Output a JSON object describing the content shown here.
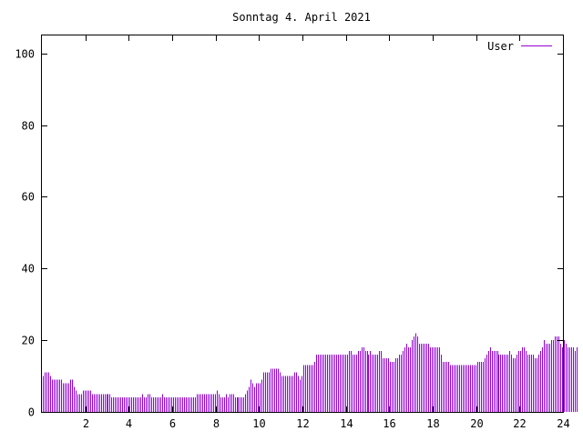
{
  "chart_data": {
    "type": "bar",
    "title": "Sonntag 4. April 2021",
    "xlabel": "",
    "ylabel": "",
    "xlim": [
      0,
      24
    ],
    "ylim": [
      0,
      105
    ],
    "x_ticks": [
      "2",
      "4",
      "6",
      "8",
      "10",
      "12",
      "14",
      "16",
      "18",
      "20",
      "22",
      "24"
    ],
    "y_ticks": [
      "0",
      "20",
      "40",
      "60",
      "80",
      "100"
    ],
    "grid": false,
    "legend_position": "top-right",
    "series": [
      {
        "name": "User",
        "color": "#9400d3",
        "interval_minutes": 5,
        "values": [
          10,
          11,
          11,
          11,
          10,
          9,
          9,
          9,
          9,
          9,
          9,
          8,
          8,
          8,
          8,
          9,
          9,
          7,
          6,
          5,
          5,
          5,
          6,
          6,
          6,
          6,
          6,
          5,
          5,
          5,
          5,
          5,
          5,
          5,
          5,
          5,
          5,
          5,
          4,
          4,
          4,
          4,
          4,
          4,
          4,
          4,
          4,
          4,
          4,
          4,
          4,
          4,
          4,
          4,
          4,
          5,
          4,
          4,
          5,
          5,
          4,
          4,
          4,
          4,
          4,
          4,
          5,
          4,
          4,
          4,
          4,
          4,
          4,
          4,
          4,
          4,
          4,
          4,
          4,
          4,
          4,
          4,
          4,
          4,
          4,
          5,
          5,
          5,
          5,
          5,
          5,
          5,
          5,
          5,
          5,
          5,
          6,
          5,
          4,
          4,
          4,
          5,
          4,
          5,
          5,
          5,
          4,
          4,
          4,
          4,
          4,
          4,
          5,
          6,
          7,
          9,
          8,
          7,
          8,
          8,
          8,
          9,
          11,
          11,
          11,
          11,
          12,
          12,
          12,
          12,
          12,
          11,
          10,
          10,
          10,
          10,
          10,
          10,
          10,
          11,
          11,
          10,
          9,
          10,
          13,
          13,
          13,
          13,
          13,
          13,
          14,
          16,
          16,
          16,
          16,
          16,
          16,
          16,
          16,
          16,
          16,
          16,
          16,
          16,
          16,
          16,
          16,
          16,
          16,
          17,
          17,
          16,
          16,
          16,
          17,
          17,
          18,
          18,
          17,
          17,
          16,
          17,
          16,
          16,
          16,
          16,
          17,
          17,
          15,
          15,
          15,
          15,
          14,
          14,
          14,
          15,
          15,
          16,
          16,
          17,
          18,
          19,
          18,
          18,
          20,
          21,
          22,
          21,
          19,
          19,
          19,
          19,
          19,
          19,
          18,
          18,
          18,
          18,
          18,
          18,
          16,
          14,
          14,
          14,
          14,
          13,
          13,
          13,
          13,
          13,
          13,
          13,
          13,
          13,
          13,
          13,
          13,
          13,
          13,
          13,
          14,
          14,
          14,
          14,
          15,
          16,
          17,
          18,
          17,
          17,
          17,
          17,
          16,
          16,
          16,
          16,
          16,
          16,
          17,
          16,
          15,
          15,
          16,
          17,
          17,
          18,
          18,
          17,
          16,
          16,
          16,
          16,
          15,
          15,
          16,
          17,
          18,
          20,
          19,
          19,
          19,
          20,
          20,
          21,
          21,
          21,
          19,
          18,
          20,
          19,
          18,
          18,
          18,
          18,
          17,
          18
        ]
      }
    ]
  }
}
